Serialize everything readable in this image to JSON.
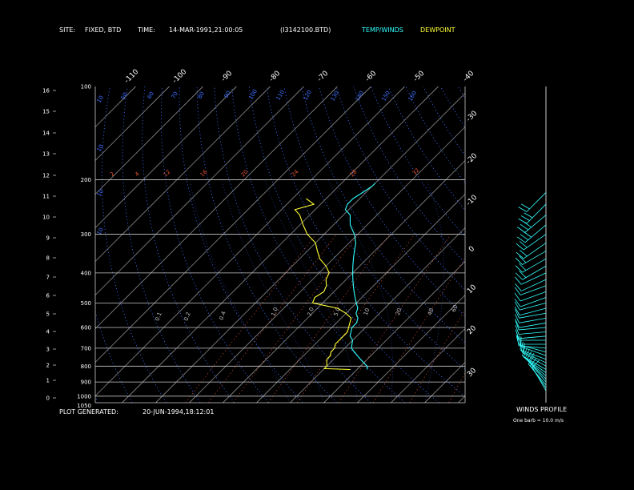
{
  "header": {
    "site_label": "SITE:",
    "site_value": "FIXED, BTD",
    "time_label": "TIME:",
    "time_value": "14-MAR-1991,21:00:05",
    "file_id": "(I3142100.BTD)",
    "legend_temp": "TEMP/WINDS",
    "legend_dew": "DEWPOINT"
  },
  "footer": {
    "generated_label": "PLOT GENERATED:",
    "generated_value": "20-JUN-1994,18:12:01",
    "winds_title": "WINDS PROFILE",
    "barb_note": "One barb = 10.0 m/s"
  },
  "colors": {
    "temp": "#33ffff",
    "dewpoint": "#ffff33",
    "isotherm": "#c8c8c8",
    "dry_adiabat": "#3f6fff",
    "mixing_ratio": "#e05030",
    "moist_adiabat": "#3050c0",
    "isobar": "#c8c8c8"
  },
  "chart_data": {
    "type": "line",
    "pressure_axis": {
      "labels": [
        "100",
        "200",
        "300",
        "400",
        "500",
        "600",
        "700",
        "800",
        "900",
        "1000",
        "1050"
      ],
      "values": [
        100,
        200,
        300,
        400,
        500,
        600,
        700,
        800,
        900,
        1000,
        1050
      ]
    },
    "height_axis": {
      "labels": [
        "0",
        "1",
        "2",
        "3",
        "4",
        "5",
        "6",
        "7",
        "8",
        "9",
        "10",
        "11",
        "12",
        "13",
        "14",
        "15",
        "16"
      ],
      "values": [
        0,
        1,
        2,
        3,
        4,
        5,
        6,
        7,
        8,
        9,
        10,
        11,
        12,
        13,
        14,
        15,
        16
      ]
    },
    "isotherm_top_labels": [
      "-110",
      "-100",
      "-90",
      "-80",
      "-70",
      "-60",
      "-50",
      "-40"
    ],
    "isotherm_side_labels": [
      "-30",
      "-20",
      "-10",
      "0",
      "10",
      "20",
      "30"
    ],
    "dry_adiabat_labels": [
      "10",
      "10",
      "10",
      "10",
      "50",
      "60",
      "70",
      "80",
      "90",
      "100",
      "110",
      "120",
      "130",
      "140",
      "150",
      "160"
    ],
    "mixing_ratio_labels": [
      "0.1",
      "0.2",
      "0.4",
      "1.0",
      "2.0",
      "5.0",
      "10",
      "20",
      "40",
      "60"
    ],
    "saturation_labels": [
      "2",
      "4",
      "12",
      "16",
      "20",
      "24",
      "28",
      "32"
    ],
    "temperature": {
      "name": "TEMP/WINDS",
      "pressure": [
        820,
        800,
        780,
        760,
        740,
        720,
        700,
        680,
        660,
        640,
        620,
        600,
        580,
        560,
        540,
        520,
        500,
        480,
        460,
        440,
        420,
        400,
        380,
        360,
        340,
        320,
        300,
        280,
        260,
        250,
        240,
        230,
        220,
        210,
        205
      ],
      "temp": [
        3,
        2,
        0,
        -2,
        -4,
        -6,
        -8,
        -9,
        -10,
        -12,
        -13,
        -14,
        -14,
        -15,
        -17,
        -18,
        -20,
        -22,
        -24,
        -26,
        -28,
        -30,
        -32,
        -34,
        -36,
        -38,
        -41,
        -45,
        -48,
        -51,
        -52,
        -52,
        -51,
        -50,
        -50
      ]
    },
    "dewpoint": {
      "name": "DEWPOINT",
      "pressure": [
        820,
        815,
        800,
        780,
        760,
        740,
        720,
        700,
        680,
        660,
        640,
        620,
        600,
        580,
        560,
        540,
        520,
        500,
        480,
        460,
        440,
        420,
        400,
        380,
        360,
        340,
        320,
        300,
        280,
        260,
        250,
        240,
        230
      ],
      "temp": [
        -2,
        -10,
        -10,
        -11,
        -12,
        -12,
        -13,
        -13,
        -14,
        -14,
        -14,
        -14,
        -15,
        -16,
        -17,
        -20,
        -24,
        -33,
        -34,
        -33,
        -34,
        -36,
        -37,
        -40,
        -44,
        -47,
        -50,
        -55,
        -59,
        -63,
        -66,
        -62,
        -66
      ]
    },
    "winds": {
      "pressure": [
        960,
        940,
        920,
        900,
        880,
        860,
        840,
        820,
        800,
        780,
        760,
        740,
        720,
        700,
        680,
        660,
        640,
        620,
        600,
        580,
        560,
        540,
        520,
        500,
        480,
        460,
        440,
        420,
        400,
        380,
        360,
        340,
        320,
        300,
        280,
        260,
        240,
        220
      ],
      "speed_ms": [
        8,
        9,
        10,
        11,
        12,
        12,
        12,
        12,
        12,
        12,
        10,
        10,
        8,
        10,
        8,
        7,
        7,
        6,
        6,
        6,
        5,
        6,
        7,
        8,
        8,
        8,
        10,
        12,
        14,
        16,
        17,
        18,
        20,
        22,
        26,
        30,
        25,
        20
      ],
      "direction_deg": [
        330,
        325,
        320,
        320,
        315,
        310,
        305,
        300,
        300,
        295,
        290,
        290,
        285,
        275,
        270,
        270,
        265,
        265,
        265,
        260,
        260,
        260,
        255,
        255,
        250,
        250,
        250,
        245,
        245,
        240,
        240,
        240,
        235,
        235,
        230,
        230,
        225,
        225
      ]
    }
  }
}
